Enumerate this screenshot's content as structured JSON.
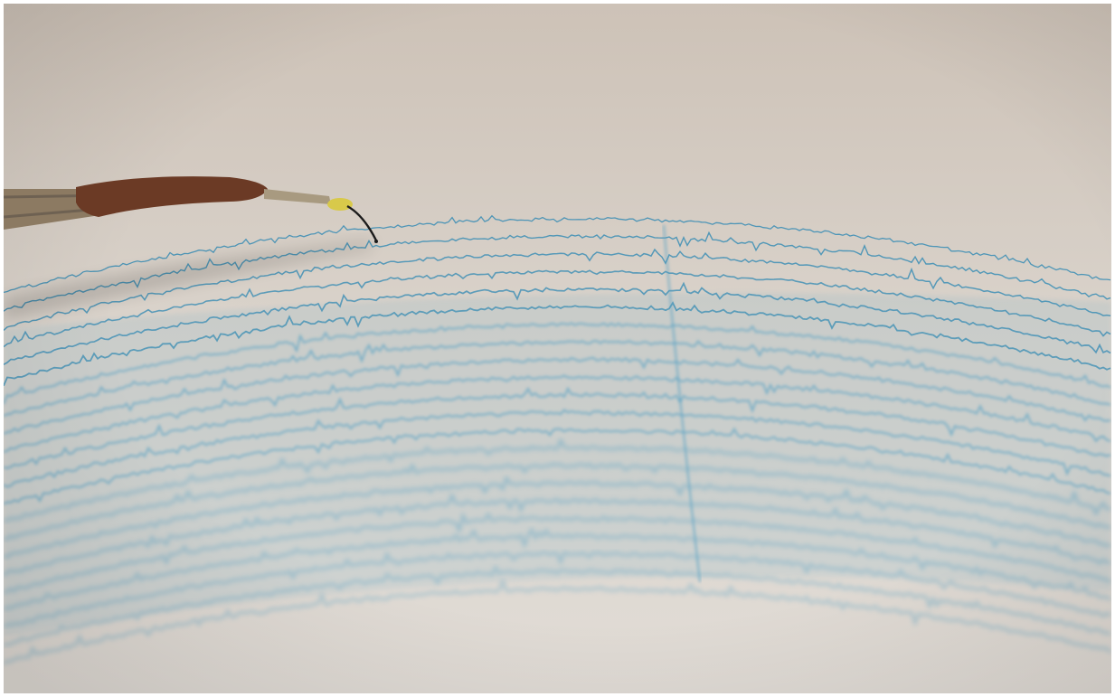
{
  "scene": {
    "subject": "seismograph-recording",
    "colors": {
      "paper_top": "#cdc2b7",
      "paper_mid": "#d9d2ca",
      "paper_bottom": "#e1dcd6",
      "ink": "#5aa3c4",
      "ink_dark": "#3f8fb5",
      "stylus_arm": "#8c7a62",
      "stylus_tape": "#6b3a25",
      "stylus_tip": "#d8c94a"
    }
  }
}
